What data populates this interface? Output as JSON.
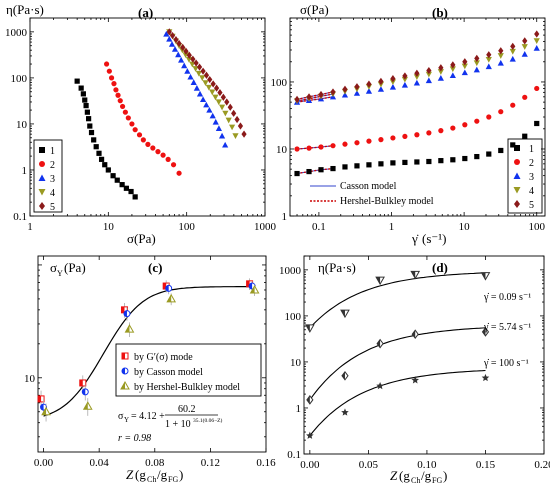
{
  "colors": {
    "s1": "#000000",
    "s2": "#ee1111",
    "s3": "#1133ee",
    "s4": "#9a9a22",
    "s5": "#8b1a1a",
    "casson": "#3344cc",
    "hb": "#cc0000",
    "fit": "#000000"
  },
  "chart_data": [
    {
      "id": "a",
      "type": "scatter",
      "panel_label": "(a)",
      "ylabel": "η(Pa·s)",
      "xlabel": "σ(Pa)",
      "xscale": "log",
      "yscale": "log",
      "xlim": [
        1,
        1000
      ],
      "ylim": [
        0.1,
        2000
      ],
      "x_ticks": [
        "1",
        "10",
        "100",
        "1000"
      ],
      "y_ticks": [
        "0.1",
        "1",
        "10",
        "100",
        "1000"
      ],
      "legend": [
        "1",
        "2",
        "3",
        "4",
        "5"
      ],
      "series": [
        {
          "name": "1",
          "marker": "square",
          "color_key": "s1",
          "x": [
            4,
            4.5,
            4.8,
            5,
            5.2,
            5.4,
            5.6,
            5.8,
            6.1,
            6.5,
            7,
            7.6,
            8.2,
            9,
            10,
            11.5,
            13,
            15,
            17,
            19.5,
            22
          ],
          "y": [
            85,
            60,
            45,
            33,
            25,
            18,
            13,
            9,
            6.5,
            4.5,
            3.2,
            2.3,
            1.7,
            1.3,
            1.0,
            0.75,
            0.6,
            0.48,
            0.4,
            0.34,
            0.26
          ]
        },
        {
          "name": "2",
          "marker": "circle",
          "color_key": "s2",
          "x": [
            9.5,
            10.3,
            11,
            11.8,
            12.5,
            13.3,
            14.2,
            15.2,
            16.5,
            18,
            20,
            22,
            25,
            28,
            32,
            37,
            43,
            50,
            58,
            68,
            80
          ],
          "y": [
            200,
            140,
            100,
            75,
            55,
            42,
            32,
            24,
            18,
            13.5,
            10,
            7.5,
            5.8,
            4.5,
            3.6,
            3.0,
            2.5,
            2.1,
            1.7,
            1.3,
            0.85
          ]
        },
        {
          "name": "3",
          "marker": "tri-up",
          "color_key": "s3",
          "x": [
            55,
            60,
            65,
            71,
            78,
            85,
            93,
            102,
            112,
            123,
            135,
            148,
            162,
            178,
            195,
            215,
            235,
            258,
            283,
            310
          ],
          "y": [
            900,
            700,
            540,
            420,
            320,
            245,
            185,
            140,
            105,
            80,
            60,
            45,
            34,
            26,
            20,
            15,
            11,
            8,
            5.5,
            3.5
          ]
        },
        {
          "name": "4",
          "marker": "tri-down",
          "color_key": "s4",
          "x": [
            60,
            66,
            73,
            80,
            88,
            97,
            107,
            118,
            130,
            143,
            158,
            174,
            192,
            212,
            233,
            257,
            283,
            312,
            344,
            380,
            420
          ],
          "y": [
            1000,
            800,
            630,
            500,
            400,
            315,
            250,
            198,
            158,
            125,
            100,
            78,
            62,
            49,
            38,
            30,
            23,
            17,
            12,
            8.5,
            5.5
          ]
        },
        {
          "name": "5",
          "marker": "diamond",
          "color_key": "s5",
          "x": [
            60,
            66,
            73,
            80,
            89,
            98,
            108,
            120,
            132,
            146,
            162,
            179,
            197,
            218,
            241,
            266,
            294,
            325,
            360,
            398,
            440,
            486,
            540
          ],
          "y": [
            1000,
            830,
            680,
            560,
            460,
            380,
            310,
            255,
            210,
            172,
            140,
            114,
            92,
            74,
            60,
            48,
            38,
            30,
            23,
            17,
            12.5,
            9,
            6
          ]
        }
      ]
    },
    {
      "id": "b",
      "type": "scatter",
      "panel_label": "(b)",
      "ylabel": "σ(Pa)",
      "xlabel_base": "γ̇",
      "xlabel_unit": "(s⁻¹)",
      "xscale": "log",
      "yscale": "log",
      "xlim": [
        0.04,
        130
      ],
      "ylim": [
        1,
        900
      ],
      "x_ticks": [
        "0.1",
        "1",
        "10",
        "100"
      ],
      "y_ticks": [
        "1",
        "10",
        "100"
      ],
      "legend": [
        "1",
        "2",
        "3",
        "4",
        "5"
      ],
      "line_legend": [
        "Casson model",
        "Hershel-Bulkley model"
      ],
      "series": [
        {
          "name": "1",
          "marker": "square",
          "color_key": "s1",
          "x0": 0.05,
          "x1": 100,
          "n": 21,
          "y": [
            4.3,
            4.6,
            4.9,
            5.1,
            5.4,
            5.6,
            5.8,
            6.0,
            6.2,
            6.3,
            6.4,
            6.5,
            6.7,
            6.9,
            7.2,
            7.7,
            8.4,
            9.5,
            11.5,
            15.5,
            24
          ]
        },
        {
          "name": "2",
          "marker": "circle",
          "color_key": "s2",
          "x0": 0.05,
          "x1": 100,
          "n": 21,
          "y": [
            10.0,
            10.3,
            10.7,
            11.2,
            11.8,
            12.4,
            13.1,
            13.8,
            14.6,
            15.4,
            16.3,
            17.4,
            18.8,
            20.5,
            23,
            26,
            30,
            36,
            45,
            59,
            80
          ]
        },
        {
          "name": "3",
          "marker": "tri-up",
          "color_key": "s3",
          "x0": 0.05,
          "x1": 100,
          "n": 21,
          "y": [
            50,
            53,
            56,
            60,
            64,
            68,
            73,
            78,
            84,
            90,
            97,
            105,
            114,
            125,
            138,
            152,
            170,
            192,
            220,
            260,
            320
          ]
        },
        {
          "name": "4",
          "marker": "tri-down",
          "color_key": "s4",
          "x0": 0.05,
          "x1": 100,
          "n": 21,
          "y": [
            52,
            56,
            61,
            66,
            72,
            78,
            85,
            92,
            100,
            109,
            119,
            130,
            142,
            156,
            172,
            192,
            216,
            246,
            285,
            335,
            410
          ]
        },
        {
          "name": "5",
          "marker": "diamond",
          "color_key": "s5",
          "x0": 0.05,
          "x1": 100,
          "n": 21,
          "y": [
            55,
            60,
            65,
            71,
            78,
            85,
            93,
            102,
            112,
            123,
            135,
            148,
            163,
            180,
            200,
            225,
            255,
            292,
            340,
            410,
            520
          ]
        }
      ]
    },
    {
      "id": "c",
      "type": "scatter",
      "panel_label": "(c)",
      "ylabel": "σY(Pa)",
      "xlabel": "Z(gCh/gFG)",
      "xscale": "linear",
      "yscale": "log",
      "xlim": [
        -0.004,
        0.16
      ],
      "ylim": [
        2.2,
        120
      ],
      "x_ticks": [
        0.0,
        0.04,
        0.08,
        0.12,
        0.16
      ],
      "y_ticks": [
        "10"
      ],
      "legend": [
        "by G′(σ) mode",
        "by Casson model",
        "by Hershel-Bulkley model"
      ],
      "equation": "σY = 4.12 + 60.2 / (1 + 10^(35.1(0.06 − Z)))",
      "r_value": "r = 0.98",
      "fit": {
        "a": 4.12,
        "b": 60.2,
        "k": 35.1,
        "z0": 0.06
      },
      "series": [
        {
          "name": "by G′(σ) mode",
          "marker": "sq-half",
          "color_key": "s2",
          "x": [
            0.0,
            0.03,
            0.06,
            0.09,
            0.15
          ],
          "y": [
            6.5,
            9.0,
            40,
            65,
            68
          ],
          "err": [
            1.2,
            1.5,
            6,
            8,
            8
          ]
        },
        {
          "name": "by Casson model",
          "marker": "circ-half",
          "color_key": "s3",
          "x": [
            0.0,
            0.03,
            0.06,
            0.09,
            0.15
          ],
          "y": [
            5.5,
            7.5,
            37,
            62,
            65
          ],
          "err": [
            1.0,
            1.2,
            5,
            7,
            7
          ]
        },
        {
          "name": "by Hershel-Bulkley model",
          "marker": "tri-half",
          "color_key": "s4",
          "x": [
            0.0,
            0.03,
            0.06,
            0.09,
            0.15
          ],
          "y": [
            5.0,
            5.6,
            27,
            50,
            60
          ],
          "err": [
            0.9,
            1.0,
            4,
            6,
            7
          ]
        }
      ]
    },
    {
      "id": "d",
      "type": "scatter",
      "panel_label": "(d)",
      "ylabel": "η(Pa·s)",
      "xlabel": "Z(gCh/gFG)",
      "xscale": "linear",
      "yscale": "log",
      "xlim": [
        -0.005,
        0.2
      ],
      "ylim": [
        0.1,
        2000
      ],
      "x_ticks": [
        0.0,
        0.05,
        0.1,
        0.15,
        0.2
      ],
      "y_ticks": [
        "0.1",
        "1",
        "10",
        "100",
        "1000"
      ],
      "annotations": [
        "γ̇ = 0.09 s⁻¹",
        "γ̇ = 5.74 s⁻¹",
        "γ̇ = 100 s⁻¹"
      ],
      "series": [
        {
          "name": "0.09",
          "marker": "tri-down-half",
          "x": [
            0.0,
            0.03,
            0.06,
            0.09,
            0.15
          ],
          "y": [
            55,
            115,
            600,
            800,
            750
          ],
          "fit": [
            55,
            860
          ]
        },
        {
          "name": "5.74",
          "marker": "diamond-half",
          "x": [
            0.0,
            0.03,
            0.06,
            0.09,
            0.15
          ],
          "y": [
            1.5,
            5.0,
            25,
            40,
            45
          ],
          "fit": [
            1.5,
            55
          ]
        },
        {
          "name": "100",
          "marker": "star",
          "x": [
            0.0,
            0.03,
            0.06,
            0.09,
            0.15
          ],
          "y": [
            0.25,
            0.8,
            3.0,
            4.0,
            4.5
          ],
          "fit": [
            0.25,
            6.5
          ]
        }
      ]
    }
  ]
}
